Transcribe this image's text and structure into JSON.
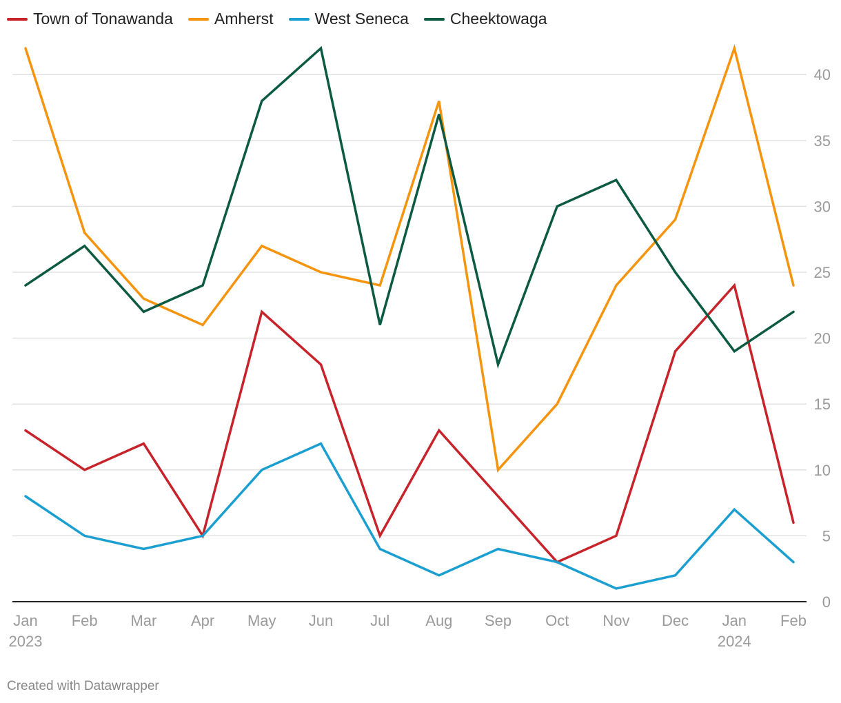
{
  "chart_data": {
    "type": "line",
    "categories": [
      "Jan",
      "Feb",
      "Mar",
      "Apr",
      "May",
      "Jun",
      "Jul",
      "Aug",
      "Sep",
      "Oct",
      "Nov",
      "Dec",
      "Jan",
      "Feb"
    ],
    "year_labels": [
      {
        "index": 0,
        "label": "2023"
      },
      {
        "index": 12,
        "label": "2024"
      }
    ],
    "ylim": [
      0,
      42
    ],
    "yticks": [
      0,
      5,
      10,
      15,
      20,
      25,
      30,
      35,
      40
    ],
    "grid": true,
    "legend_position": "top-left",
    "series": [
      {
        "name": "Town of Tonawanda",
        "color": "#c7232b",
        "values": [
          13,
          10,
          12,
          5,
          22,
          18,
          5,
          13,
          8,
          3,
          5,
          19,
          24,
          6
        ]
      },
      {
        "name": "Amherst",
        "color": "#f5940e",
        "values": [
          42,
          28,
          23,
          21,
          27,
          25,
          24,
          38,
          10,
          15,
          24,
          29,
          42,
          24
        ]
      },
      {
        "name": "West Seneca",
        "color": "#1b9fd0",
        "values": [
          8,
          5,
          4,
          5,
          10,
          12,
          4,
          2,
          4,
          3,
          1,
          2,
          7,
          3
        ]
      },
      {
        "name": "Cheektowaga",
        "color": "#0c5a42",
        "values": [
          24,
          27,
          22,
          24,
          38,
          42,
          21,
          37,
          18,
          30,
          32,
          25,
          19,
          22
        ]
      }
    ]
  },
  "footer": {
    "credit": "Created with Datawrapper"
  }
}
